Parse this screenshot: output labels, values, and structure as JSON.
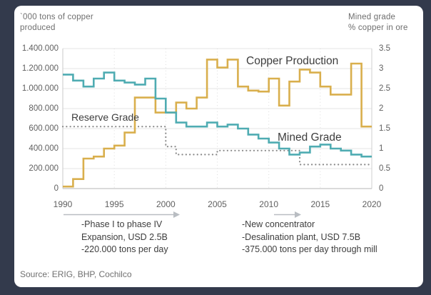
{
  "frame": {
    "background": "#333A4C",
    "card_background": "#FFFFFF"
  },
  "left_axis": {
    "title_line1": "`000 tons of copper",
    "title_line2": "produced",
    "ticks": [
      {
        "label": "1.400.000",
        "value": 1400000
      },
      {
        "label": "1.200.000",
        "value": 1200000
      },
      {
        "label": "1.000.000",
        "value": 1000000
      },
      {
        "label": "800.000",
        "value": 800000
      },
      {
        "label": "600.000",
        "value": 600000
      },
      {
        "label": "400.000",
        "value": 400000
      },
      {
        "label": "200.000",
        "value": 200000
      },
      {
        "label": "0",
        "value": 0
      }
    ],
    "range": [
      0,
      1400000
    ]
  },
  "right_axis": {
    "title_line1": "Mined grade",
    "title_line2": "% copper in ore",
    "ticks": [
      {
        "label": "3.5",
        "value": 3.5
      },
      {
        "label": "3",
        "value": 3
      },
      {
        "label": "2.5",
        "value": 2.5
      },
      {
        "label": "2",
        "value": 2
      },
      {
        "label": "1.5",
        "value": 1.5
      },
      {
        "label": "1",
        "value": 1
      },
      {
        "label": "0.5",
        "value": 0.5
      },
      {
        "label": "0",
        "value": 0
      }
    ],
    "range": [
      0,
      3.5
    ]
  },
  "x_axis": {
    "ticks": [
      {
        "label": "1990",
        "value": 1990
      },
      {
        "label": "1995",
        "value": 1995
      },
      {
        "label": "2000",
        "value": 2000
      },
      {
        "label": "2005",
        "value": 2005
      },
      {
        "label": "2010",
        "value": 2010
      },
      {
        "label": "2015",
        "value": 2015
      },
      {
        "label": "2020",
        "value": 2020
      }
    ],
    "range": [
      1990,
      2020
    ]
  },
  "series_labels": {
    "production": "Copper Production",
    "mined": "Mined Grade",
    "reserve": "Reserve Grade"
  },
  "annotations": {
    "phase1": {
      "lines": [
        "-Phase I to phase IV",
        "Expansion, USD 2.5B",
        "-220.000 tons per day"
      ]
    },
    "phase2": {
      "lines": [
        "-New concentrator",
        "-Desalination plant, USD 7.5B",
        "-375.000 tons per day through mill"
      ]
    }
  },
  "source": "Source: ERIG, BHP, Cochilco",
  "chart_data": {
    "type": "line",
    "subtype": "step",
    "title": "",
    "xlabel": "",
    "ylabel_left": "`000 tons of copper produced",
    "ylabel_right": "Mined grade % copper in ore",
    "x_range": [
      1990,
      2020
    ],
    "left_ylim": [
      0,
      1400000
    ],
    "right_ylim": [
      0,
      3.5
    ],
    "grid": "horizontal solid lines each 200.000 / 0.5; faint vertical dotted lines at 5-year ticks",
    "legend_position": "inline labels on plot",
    "years": [
      1990,
      1991,
      1992,
      1993,
      1994,
      1995,
      1996,
      1997,
      1998,
      1999,
      2000,
      2001,
      2002,
      2003,
      2004,
      2005,
      2006,
      2007,
      2008,
      2009,
      2010,
      2011,
      2012,
      2013,
      2014,
      2015,
      2016,
      2017,
      2018,
      2019,
      2020
    ],
    "series": [
      {
        "name": "Copper Production",
        "axis": "left",
        "unit": "tons of copper produced",
        "color": "#D9AF4D",
        "style": "solid-step",
        "values": [
          20000,
          95000,
          300000,
          320000,
          400000,
          430000,
          560000,
          910000,
          910000,
          760000,
          760000,
          860000,
          800000,
          910000,
          1290000,
          1210000,
          1290000,
          1020000,
          980000,
          970000,
          1100000,
          830000,
          1070000,
          1190000,
          1160000,
          1020000,
          940000,
          940000,
          1250000,
          620000,
          620000
        ]
      },
      {
        "name": "Mined Grade",
        "axis": "right",
        "unit": "% copper in ore",
        "color": "#4FACB2",
        "style": "solid-step",
        "values": [
          2.85,
          2.7,
          2.55,
          2.75,
          2.9,
          2.7,
          2.65,
          2.6,
          2.75,
          2.25,
          1.9,
          1.65,
          1.55,
          1.55,
          1.65,
          1.55,
          1.6,
          1.5,
          1.35,
          1.25,
          1.15,
          1.0,
          0.85,
          0.9,
          1.05,
          1.1,
          1.0,
          0.95,
          0.85,
          0.8,
          0.8
        ]
      },
      {
        "name": "Reserve Grade",
        "axis": "right",
        "unit": "% copper in ore",
        "color": "#8A8A8A",
        "style": "dotted-step",
        "values": [
          1.55,
          1.55,
          1.55,
          1.55,
          1.55,
          1.55,
          1.55,
          1.55,
          1.55,
          1.55,
          1.05,
          0.85,
          0.85,
          0.85,
          0.85,
          0.95,
          0.95,
          0.95,
          0.95,
          0.95,
          0.95,
          0.95,
          0.95,
          0.6,
          0.6,
          0.6,
          0.6,
          0.6,
          0.6,
          0.6,
          0.6
        ]
      }
    ]
  }
}
